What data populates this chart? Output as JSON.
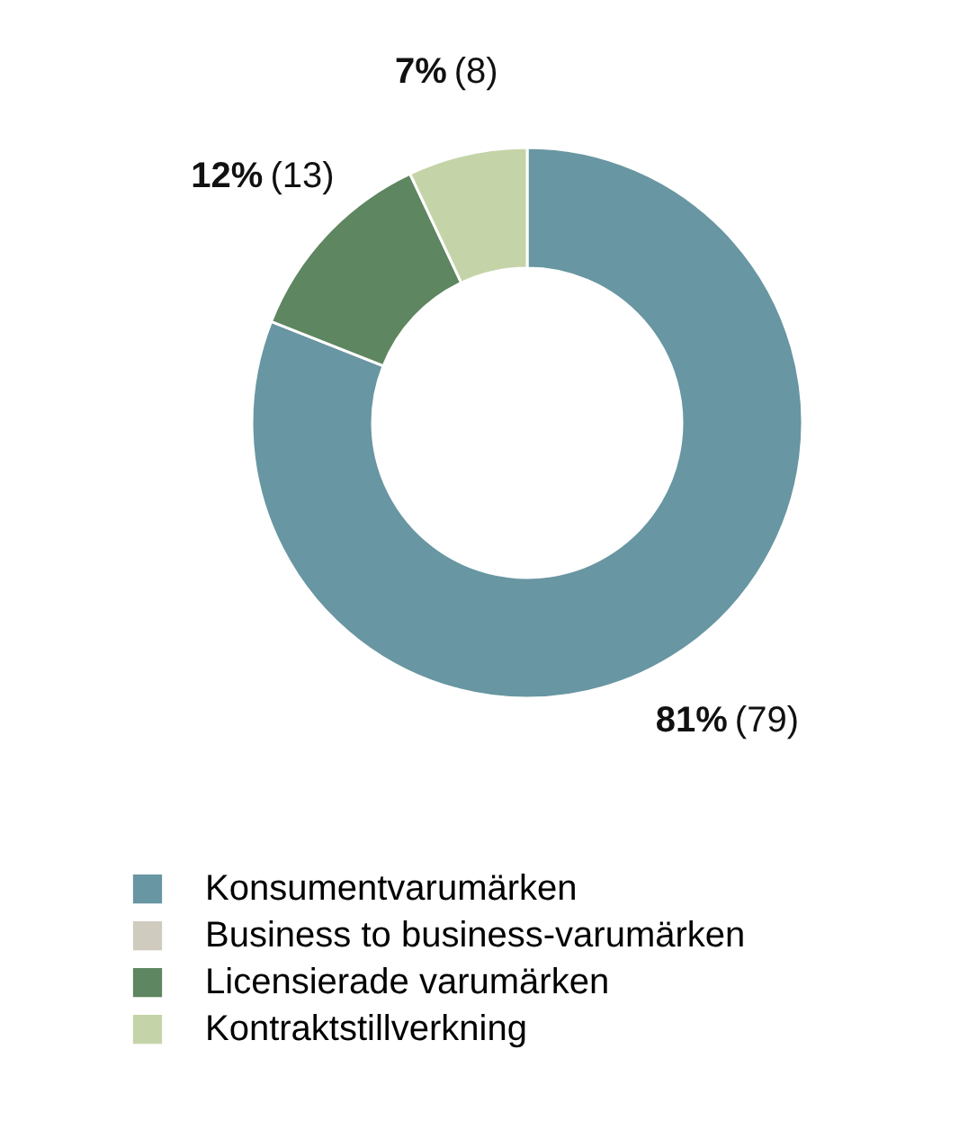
{
  "chart_data": {
    "type": "donut",
    "categories": [
      "Konsumentvarumärken",
      "Business to business-varumärken",
      "Licensierade varumärken",
      "Kontraktstillverkning"
    ],
    "values": [
      81,
      0,
      12,
      7
    ],
    "colors": [
      "#6896a2",
      "#d0cbbf",
      "#5e8660",
      "#c4d4a8"
    ],
    "value_labels": [
      "81% (79)",
      null,
      "12% (13)",
      "7% (8)"
    ],
    "legend": "bottom"
  }
}
